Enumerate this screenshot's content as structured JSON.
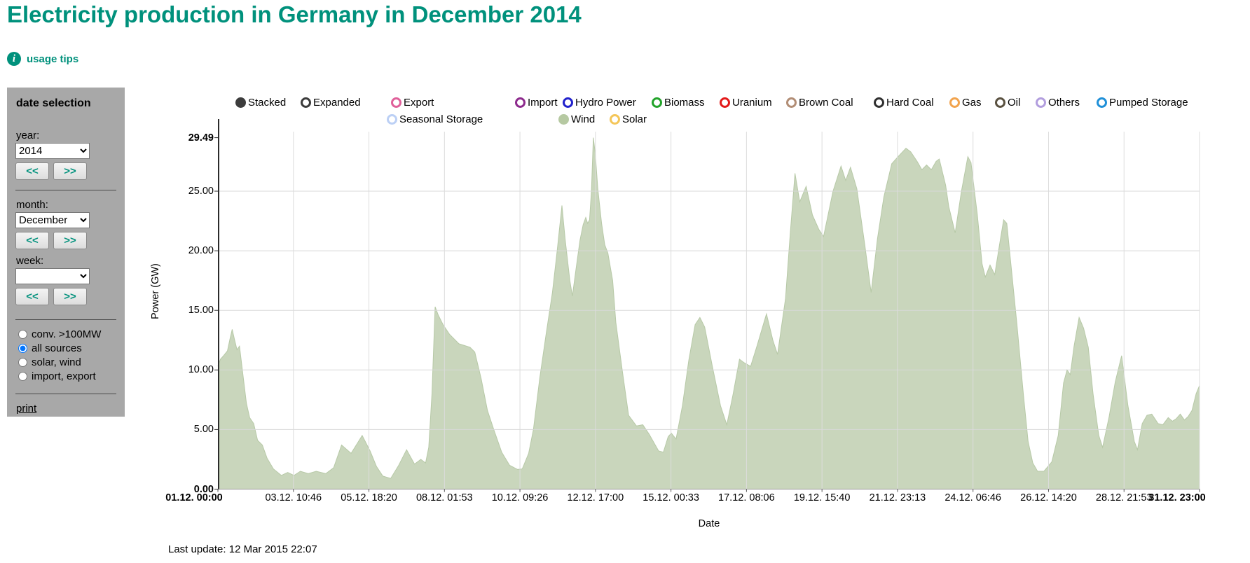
{
  "header": {
    "title": "Electricity production in Germany in December 2014",
    "usage_tips_label": "usage tips"
  },
  "sidebar": {
    "title": "date selection",
    "year_label": "year:",
    "year_value": "2014",
    "month_label": "month:",
    "month_value": "December",
    "week_label": "week:",
    "week_value": "",
    "prev_label": "<<",
    "next_label": ">>",
    "radios": [
      {
        "label": "conv. >100MW",
        "checked": false
      },
      {
        "label": "all sources",
        "checked": true
      },
      {
        "label": "solar, wind",
        "checked": false
      },
      {
        "label": "import, export",
        "checked": false
      }
    ],
    "print_label": "print"
  },
  "legend": {
    "row1": [
      {
        "label": "Stacked",
        "color": "#3c3c3c",
        "filled": true
      },
      {
        "label": "Expanded",
        "color": "#3c3c3c",
        "filled": false
      },
      {
        "label": "Export",
        "color": "#e0609a",
        "filled": false
      },
      {
        "label": "Import",
        "color": "#8d2b8d",
        "filled": false
      },
      {
        "label": "Hydro Power",
        "color": "#2222cc",
        "filled": false
      },
      {
        "label": "Biomass",
        "color": "#22a32a",
        "filled": false
      },
      {
        "label": "Uranium",
        "color": "#e31a1a",
        "filled": false
      },
      {
        "label": "Brown Coal",
        "color": "#b28e76",
        "filled": false
      },
      {
        "label": "Hard Coal",
        "color": "#303030",
        "filled": false
      },
      {
        "label": "Gas",
        "color": "#f2a44e",
        "filled": false
      },
      {
        "label": "Oil",
        "color": "#5a5140",
        "filled": false
      },
      {
        "label": "Others",
        "color": "#b29ede",
        "filled": false
      },
      {
        "label": "Pumped Storage",
        "color": "#2090d8",
        "filled": false
      }
    ],
    "row2": [
      {
        "label": "Seasonal Storage",
        "color": "#bcd0f5",
        "filled": false
      },
      {
        "label": "Wind",
        "color": "#b6c9a2",
        "filled": true
      },
      {
        "label": "Solar",
        "color": "#f4c659",
        "filled": false
      }
    ]
  },
  "chart_data": {
    "type": "area",
    "title": "Electricity production in Germany in December 2014",
    "xlabel": "Date",
    "ylabel": "Power (GW)",
    "ylim": [
      0,
      29.49
    ],
    "grid": true,
    "yticks": [
      "29.49",
      "25.00",
      "20.00",
      "15.00",
      "10.00",
      "5.00",
      "0.00"
    ],
    "xticks": [
      "01.12. 00:00",
      "03.12. 10:46",
      "05.12. 18:20",
      "08.12. 01:53",
      "10.12. 09:26",
      "12.12. 17:00",
      "15.12. 00:33",
      "17.12. 08:06",
      "19.12. 15:40",
      "21.12. 23:13",
      "24.12. 06:46",
      "26.12. 14:20",
      "28.12. 21:53",
      "31.12. 23:00"
    ],
    "x_total_days": 30.958,
    "x_unit": "days since 01.12.2014 00:00",
    "y_unit": "GW",
    "series": [
      {
        "name": "Wind",
        "fill_color": "#c9d6bc",
        "line_color": "#b7c9a7",
        "points": [
          [
            0,
            10.3
          ],
          [
            0.08,
            10.9
          ],
          [
            0.18,
            11.2
          ],
          [
            0.3,
            11.6
          ],
          [
            0.38,
            12.6
          ],
          [
            0.45,
            13.4
          ],
          [
            0.52,
            12.6
          ],
          [
            0.6,
            11.7
          ],
          [
            0.68,
            12.0
          ],
          [
            0.78,
            9.8
          ],
          [
            0.9,
            7.2
          ],
          [
            1.0,
            6.0
          ],
          [
            1.13,
            5.5
          ],
          [
            1.25,
            4.1
          ],
          [
            1.4,
            3.7
          ],
          [
            1.55,
            2.6
          ],
          [
            1.75,
            1.7
          ],
          [
            2.0,
            1.15
          ],
          [
            2.2,
            1.4
          ],
          [
            2.4,
            1.15
          ],
          [
            2.6,
            1.5
          ],
          [
            2.85,
            1.3
          ],
          [
            3.1,
            1.5
          ],
          [
            3.4,
            1.3
          ],
          [
            3.65,
            1.8
          ],
          [
            3.9,
            3.7
          ],
          [
            4.2,
            3.0
          ],
          [
            4.55,
            4.5
          ],
          [
            4.8,
            3.2
          ],
          [
            5.0,
            1.9
          ],
          [
            5.2,
            1.1
          ],
          [
            5.45,
            0.9
          ],
          [
            5.7,
            2.0
          ],
          [
            5.95,
            3.3
          ],
          [
            6.2,
            2.1
          ],
          [
            6.4,
            2.5
          ],
          [
            6.55,
            2.2
          ],
          [
            6.65,
            3.5
          ],
          [
            6.75,
            8.0
          ],
          [
            6.85,
            15.3
          ],
          [
            6.95,
            14.6
          ],
          [
            7.1,
            13.8
          ],
          [
            7.3,
            13.0
          ],
          [
            7.6,
            12.2
          ],
          [
            7.95,
            11.9
          ],
          [
            8.1,
            11.5
          ],
          [
            8.3,
            9.3
          ],
          [
            8.5,
            6.6
          ],
          [
            8.7,
            5.0
          ],
          [
            8.95,
            3.1
          ],
          [
            9.2,
            2.0
          ],
          [
            9.45,
            1.65
          ],
          [
            9.6,
            1.7
          ],
          [
            9.8,
            3.0
          ],
          [
            9.95,
            5.0
          ],
          [
            10.15,
            9.3
          ],
          [
            10.35,
            13.0
          ],
          [
            10.55,
            16.5
          ],
          [
            10.7,
            20.0
          ],
          [
            10.85,
            23.8
          ],
          [
            10.95,
            21.0
          ],
          [
            11.1,
            17.5
          ],
          [
            11.18,
            16.2
          ],
          [
            11.3,
            18.6
          ],
          [
            11.42,
            20.9
          ],
          [
            11.52,
            22.2
          ],
          [
            11.6,
            22.8
          ],
          [
            11.66,
            22.3
          ],
          [
            11.72,
            22.6
          ],
          [
            11.78,
            25.0
          ],
          [
            11.84,
            29.49
          ],
          [
            11.9,
            28.2
          ],
          [
            11.98,
            25.2
          ],
          [
            12.1,
            22.3
          ],
          [
            12.2,
            20.5
          ],
          [
            12.3,
            19.8
          ],
          [
            12.45,
            17.5
          ],
          [
            12.55,
            14.0
          ],
          [
            12.75,
            10.0
          ],
          [
            12.95,
            6.2
          ],
          [
            13.2,
            5.3
          ],
          [
            13.4,
            5.4
          ],
          [
            13.6,
            4.6
          ],
          [
            13.9,
            3.2
          ],
          [
            14.05,
            3.1
          ],
          [
            14.2,
            4.4
          ],
          [
            14.3,
            4.7
          ],
          [
            14.45,
            4.2
          ],
          [
            14.65,
            7.0
          ],
          [
            14.85,
            10.8
          ],
          [
            15.05,
            13.8
          ],
          [
            15.2,
            14.4
          ],
          [
            15.35,
            13.6
          ],
          [
            15.6,
            10.2
          ],
          [
            15.85,
            7.0
          ],
          [
            16.05,
            5.4
          ],
          [
            16.25,
            8.0
          ],
          [
            16.45,
            10.9
          ],
          [
            16.6,
            10.6
          ],
          [
            16.8,
            10.3
          ],
          [
            17.0,
            12.0
          ],
          [
            17.3,
            14.7
          ],
          [
            17.5,
            12.5
          ],
          [
            17.65,
            11.3
          ],
          [
            17.9,
            16.0
          ],
          [
            18.05,
            21.5
          ],
          [
            18.2,
            26.5
          ],
          [
            18.35,
            24.1
          ],
          [
            18.55,
            25.4
          ],
          [
            18.75,
            23.0
          ],
          [
            18.95,
            21.8
          ],
          [
            19.1,
            21.2
          ],
          [
            19.4,
            25.0
          ],
          [
            19.65,
            27.1
          ],
          [
            19.8,
            25.9
          ],
          [
            19.95,
            27.0
          ],
          [
            20.15,
            25.2
          ],
          [
            20.4,
            20.5
          ],
          [
            20.6,
            16.5
          ],
          [
            20.8,
            21.0
          ],
          [
            21.0,
            24.5
          ],
          [
            21.25,
            27.3
          ],
          [
            21.45,
            27.9
          ],
          [
            21.7,
            28.6
          ],
          [
            21.85,
            28.3
          ],
          [
            22.05,
            27.5
          ],
          [
            22.2,
            26.8
          ],
          [
            22.35,
            27.2
          ],
          [
            22.5,
            26.8
          ],
          [
            22.65,
            27.5
          ],
          [
            22.75,
            27.7
          ],
          [
            22.95,
            25.5
          ],
          [
            23.05,
            23.7
          ],
          [
            23.25,
            21.5
          ],
          [
            23.45,
            25.0
          ],
          [
            23.65,
            27.9
          ],
          [
            23.75,
            27.4
          ],
          [
            23.95,
            23.0
          ],
          [
            24.1,
            18.9
          ],
          [
            24.2,
            17.8
          ],
          [
            24.35,
            18.8
          ],
          [
            24.5,
            18.0
          ],
          [
            24.65,
            20.5
          ],
          [
            24.78,
            22.6
          ],
          [
            24.88,
            22.3
          ],
          [
            25.05,
            17.8
          ],
          [
            25.2,
            13.8
          ],
          [
            25.4,
            8.0
          ],
          [
            25.55,
            4.0
          ],
          [
            25.7,
            2.2
          ],
          [
            25.85,
            1.5
          ],
          [
            26.05,
            1.5
          ],
          [
            26.3,
            2.3
          ],
          [
            26.5,
            4.5
          ],
          [
            26.67,
            8.9
          ],
          [
            26.78,
            10.0
          ],
          [
            26.88,
            9.6
          ],
          [
            27.0,
            12.0
          ],
          [
            27.16,
            14.4
          ],
          [
            27.3,
            13.5
          ],
          [
            27.45,
            11.9
          ],
          [
            27.6,
            8.0
          ],
          [
            27.78,
            4.5
          ],
          [
            27.9,
            3.5
          ],
          [
            28.1,
            6.0
          ],
          [
            28.3,
            9.0
          ],
          [
            28.5,
            11.2
          ],
          [
            28.7,
            7.0
          ],
          [
            28.9,
            4.0
          ],
          [
            29.0,
            3.3
          ],
          [
            29.15,
            5.5
          ],
          [
            29.3,
            6.2
          ],
          [
            29.45,
            6.3
          ],
          [
            29.65,
            5.5
          ],
          [
            29.8,
            5.4
          ],
          [
            29.97,
            6.0
          ],
          [
            30.1,
            5.7
          ],
          [
            30.22,
            5.9
          ],
          [
            30.35,
            6.3
          ],
          [
            30.48,
            5.8
          ],
          [
            30.6,
            6.1
          ],
          [
            30.72,
            6.6
          ],
          [
            30.85,
            8.0
          ],
          [
            30.958,
            8.7
          ]
        ]
      }
    ]
  },
  "footer": {
    "last_update": "Last update: 12 Mar 2015 22:07"
  }
}
